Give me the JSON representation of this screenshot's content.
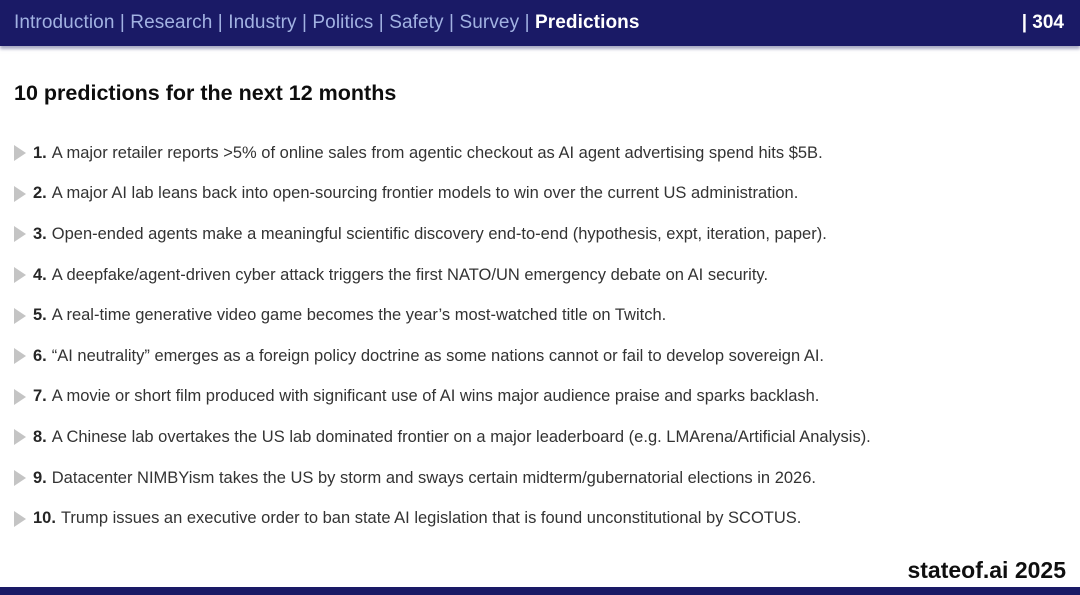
{
  "colors": {
    "navy": "#1a1a66",
    "nav_link": "#a2b2e2",
    "body_text": "#333333",
    "bullet": "#c4c4c4"
  },
  "header": {
    "nav_items": [
      "Introduction",
      "Research",
      "Industry",
      "Politics",
      "Safety",
      "Survey",
      "Predictions"
    ],
    "active_item": "Predictions",
    "separator": "|",
    "page_number": "| 304"
  },
  "main": {
    "title": "10 predictions for the next 12 months",
    "predictions": [
      {
        "number": "1.",
        "text": "A major retailer reports >5% of online sales from agentic checkout as AI agent advertising spend hits $5B."
      },
      {
        "number": "2.",
        "text": "A major AI lab leans back into open-sourcing frontier models to win over the current US administration."
      },
      {
        "number": "3.",
        "text": "Open-ended agents make a meaningful scientific discovery end-to-end (hypothesis, expt, iteration, paper)."
      },
      {
        "number": "4.",
        "text": "A deepfake/agent-driven cyber attack triggers the first NATO/UN emergency debate on AI security."
      },
      {
        "number": "5.",
        "text": "A real-time generative video game becomes the year’s most-watched title on Twitch."
      },
      {
        "number": "6.",
        "text": "“AI neutrality” emerges as a foreign policy doctrine as some nations cannot or fail to develop sovereign AI."
      },
      {
        "number": "7.",
        "text": "A movie or short film produced with significant use of AI wins major audience praise and sparks backlash."
      },
      {
        "number": "8.",
        "text": "A Chinese lab overtakes the US lab dominated frontier on a major leaderboard (e.g. LMArena/Artificial Analysis)."
      },
      {
        "number": "9.",
        "text": "Datacenter NIMBYism takes the US by storm and sways certain midterm/gubernatorial elections in 2026."
      },
      {
        "number": "10.",
        "text": "Trump issues an executive order to ban state AI legislation that is found unconstitutional by SCOTUS."
      }
    ]
  },
  "footer": {
    "brand": "stateof.ai 2025"
  }
}
